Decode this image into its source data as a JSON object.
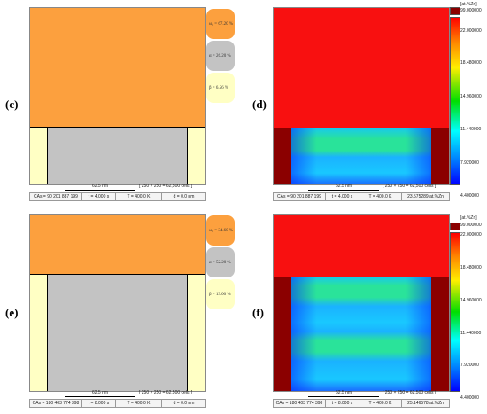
{
  "panels": {
    "c": {
      "label": "(c)",
      "legend": [
        "ω₀ = 67.20 %",
        "α = 26.20 %",
        "β = 6.56 %"
      ],
      "scale": "62.5 nm",
      "cells": "[ 250 × 250 = 62,500 cells ]",
      "status": [
        "CAs = 90 201 887 199",
        "t = 4.000 s",
        "T = 400.0 K",
        "d = 0.0 nm"
      ]
    },
    "d": {
      "label": "(d)",
      "scale": "62.5 nm",
      "cells": "[ 250 × 250 = 62,500 cells ]",
      "status": [
        "CAs = 90 201 887 199",
        "t = 4.000 s",
        "T = 400.0 K",
        "23.575289 at.%Zn"
      ]
    },
    "e": {
      "label": "(e)",
      "legend": [
        "ω₀ = 34.60 %",
        "α = 52.20 %",
        "β = 13.00 %"
      ],
      "scale": "62.5 nm",
      "cells": "[ 250 × 250 = 62,500 cells ]",
      "status": [
        "CAs = 180 403 774 398",
        "t = 8.000 s",
        "T = 400.0 K",
        "d = 0.0 nm"
      ]
    },
    "f": {
      "label": "(f)",
      "scale": "62.5 nm",
      "cells": "[ 250 × 250 = 62,500 cells ]",
      "status": [
        "CAs = 180 403 774 398",
        "t = 8.000 s",
        "T = 400.0 K",
        "25.146578 at.%Zn"
      ]
    }
  },
  "colorbar": {
    "unit": "[at.%Zn]",
    "ticks": [
      "99.000000",
      "22.000000",
      "18.480000",
      "14.960000",
      "11.440000",
      "7.920000",
      "4.400000"
    ]
  },
  "colors": {
    "omega": "#fca03e",
    "alpha": "#c3c3c3",
    "beta": "#ffffc4",
    "red": "#f81010",
    "darkred": "#8b0000"
  }
}
